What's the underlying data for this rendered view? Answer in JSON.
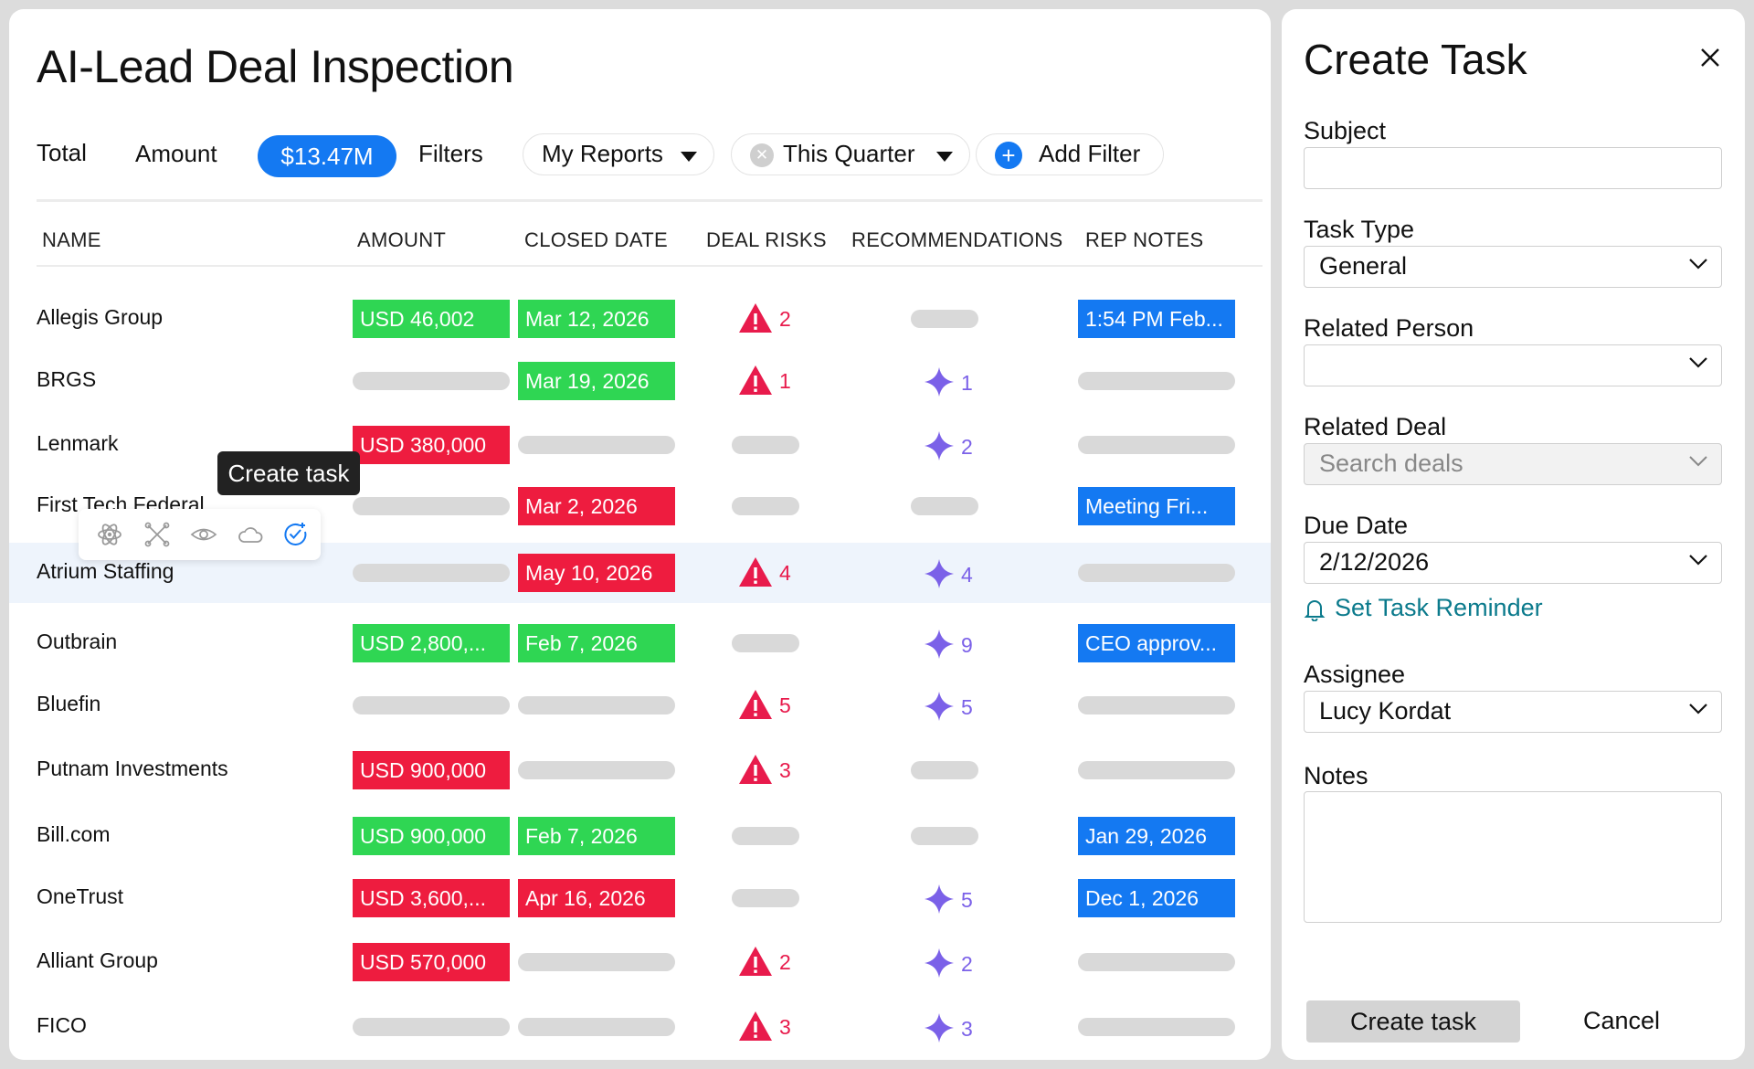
{
  "page_title": "AI-Lead Deal Inspection",
  "toolbar": {
    "total_label": "Total",
    "amount_label": "Amount",
    "amount_value": "$13.47M",
    "filters_label": "Filters",
    "reports_select": "My Reports",
    "quarter_select": "This Quarter",
    "add_filter": "Add Filter"
  },
  "columns": [
    "NAME",
    "AMOUNT",
    "CLOSED DATE",
    "DEAL RISKS",
    "RECOMMENDATIONS",
    "REP NOTES"
  ],
  "rows": [
    {
      "name": "Allegis Group",
      "amount": "USD  46,002",
      "amount_color": "green",
      "date": "Mar 12, 2026",
      "date_color": "green",
      "risk": "2",
      "rec": "",
      "note": "1:54 PM Feb..."
    },
    {
      "name": "BRGS",
      "amount": "",
      "amount_color": "",
      "date": "Mar 19, 2026",
      "date_color": "green",
      "risk": "1",
      "rec": "1",
      "note": ""
    },
    {
      "name": "Lenmark",
      "amount": "USD  380,000",
      "amount_color": "red",
      "date": "",
      "date_color": "",
      "risk": "",
      "rec": "2",
      "note": ""
    },
    {
      "name": "First Tech Federal",
      "amount": "",
      "amount_color": "",
      "date": "Mar 2, 2026",
      "date_color": "red",
      "risk": "",
      "rec": "",
      "note": "Meeting Fri..."
    },
    {
      "name": "Atrium Staffing",
      "amount": "",
      "amount_color": "",
      "date": "May 10, 2026",
      "date_color": "red",
      "risk": "4",
      "rec": "4",
      "note": ""
    },
    {
      "name": "Outbrain",
      "amount": "USD  2,800,...",
      "amount_color": "green",
      "date": "Feb 7, 2026",
      "date_color": "green",
      "risk": "",
      "rec": "9",
      "note": "CEO approv..."
    },
    {
      "name": "Bluefin",
      "amount": "",
      "amount_color": "",
      "date": "",
      "date_color": "",
      "risk": "5",
      "rec": "5",
      "note": ""
    },
    {
      "name": "Putnam Investments",
      "amount": "USD  900,000",
      "amount_color": "red",
      "date": "",
      "date_color": "",
      "risk": "3",
      "rec": "",
      "note": ""
    },
    {
      "name": "Bill.com",
      "amount": "USD  900,000",
      "amount_color": "green",
      "date": "Feb 7, 2026",
      "date_color": "green",
      "risk": "",
      "rec": "",
      "note": "Jan 29, 2026"
    },
    {
      "name": "OneTrust",
      "amount": "USD  3,600,...",
      "amount_color": "red",
      "date": "Apr 16, 2026",
      "date_color": "red",
      "risk": "",
      "rec": "5",
      "note": "Dec 1, 2026"
    },
    {
      "name": "Alliant Group",
      "amount": "USD  570,000",
      "amount_color": "red",
      "date": "",
      "date_color": "",
      "risk": "2",
      "rec": "2",
      "note": ""
    },
    {
      "name": "FICO",
      "amount": "",
      "amount_color": "",
      "date": "",
      "date_color": "",
      "risk": "3",
      "rec": "3",
      "note": ""
    }
  ],
  "tooltip": "Create task",
  "hover_actions": [
    "atom-icon",
    "scissors-icon",
    "eye-icon",
    "cloud-icon",
    "task-check-icon"
  ],
  "create_task": {
    "title": "Create Task",
    "subject_label": "Subject",
    "subject_value": "",
    "task_type_label": "Task Type",
    "task_type_value": "General",
    "related_person_label": "Related Person",
    "related_person_value": "",
    "related_deal_label": "Related Deal",
    "related_deal_placeholder": "Search deals",
    "due_date_label": "Due Date",
    "due_date_value": "2/12/2026",
    "reminder_link": "Set Task Reminder",
    "assignee_label": "Assignee",
    "assignee_value": "Lucy Kordat",
    "notes_label": "Notes",
    "notes_value": "",
    "create_button": "Create task",
    "cancel_button": "Cancel"
  },
  "colors": {
    "accent_blue": "#1479f2",
    "chip_green": "#2fd653",
    "chip_red": "#ee1c3f",
    "risk_red": "#e81b4c",
    "rec_purple": "#7b61e8",
    "reminder_teal": "#0b7a8c"
  }
}
